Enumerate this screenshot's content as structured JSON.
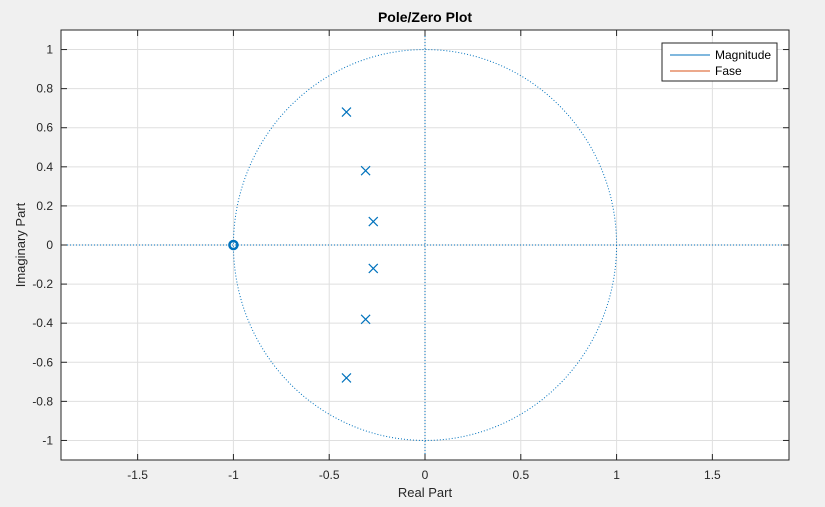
{
  "chart_data": {
    "type": "scatter",
    "title": "Pole/Zero Plot",
    "xlabel": "Real Part",
    "ylabel": "Imaginary Part",
    "xlim": [
      -1.9,
      1.9
    ],
    "ylim": [
      -1.1,
      1.1
    ],
    "grid": true,
    "x_ticks": [
      -1.5,
      -1,
      -0.5,
      0,
      0.5,
      1,
      1.5
    ],
    "x_tick_labels": [
      "-1.5",
      "-1",
      "-0.5",
      "0",
      "0.5",
      "1",
      "1.5"
    ],
    "y_ticks": [
      1,
      0.8,
      0.6,
      0.4,
      0.2,
      0,
      -0.2,
      -0.4,
      -0.6,
      -0.8,
      -1
    ],
    "y_tick_labels": [
      "1",
      "0.8",
      "0.6",
      "0.4",
      "0.2",
      "0",
      "-0.2",
      "-0.4",
      "-0.6",
      "-0.8",
      "-1"
    ],
    "unit_circle": true,
    "series": [
      {
        "marker": "x",
        "color": "#0072bd",
        "points": [
          {
            "x": -0.41,
            "y": 0.68
          },
          {
            "x": -0.31,
            "y": 0.38
          },
          {
            "x": -0.27,
            "y": 0.12
          },
          {
            "x": -0.27,
            "y": -0.12
          },
          {
            "x": -0.31,
            "y": -0.38
          },
          {
            "x": -0.41,
            "y": -0.68
          }
        ]
      },
      {
        "marker": "o",
        "color": "#0072bd",
        "points": [
          {
            "x": -1.0,
            "y": 0.0
          }
        ]
      }
    ],
    "legend": {
      "placement": "top-right",
      "entries": [
        {
          "label": "Magnitude",
          "color": "#0072bd"
        },
        {
          "label": "Fase",
          "color": "#d95319"
        }
      ]
    }
  }
}
